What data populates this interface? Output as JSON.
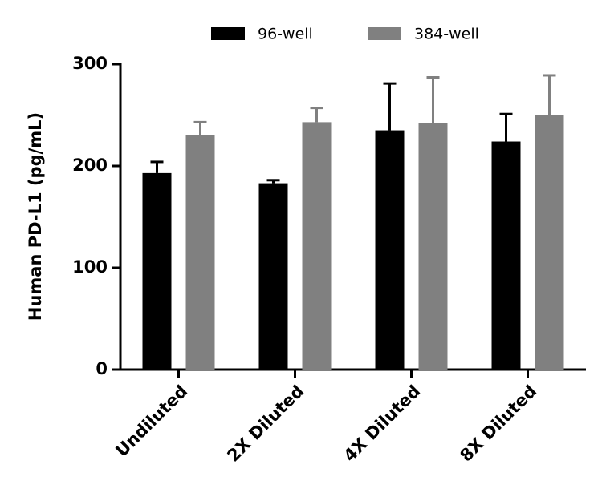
{
  "chart_data": {
    "type": "bar",
    "y_label": "Human PD-L1 (pg/mL)",
    "categories": [
      "Undiluted",
      "2X Diluted",
      "4X Diluted",
      "8X Diluted"
    ],
    "series": [
      {
        "name": "96-well",
        "color": "#000000",
        "values": [
          193,
          183,
          235,
          224
        ],
        "errors": [
          11,
          3,
          46,
          27
        ]
      },
      {
        "name": "384-well",
        "color": "#808080",
        "values": [
          230,
          243,
          242,
          250
        ],
        "errors": [
          13,
          14,
          45,
          39
        ]
      }
    ],
    "ylim": [
      0,
      300
    ],
    "yticks": [
      0,
      100,
      200,
      300
    ],
    "legend": "top"
  }
}
